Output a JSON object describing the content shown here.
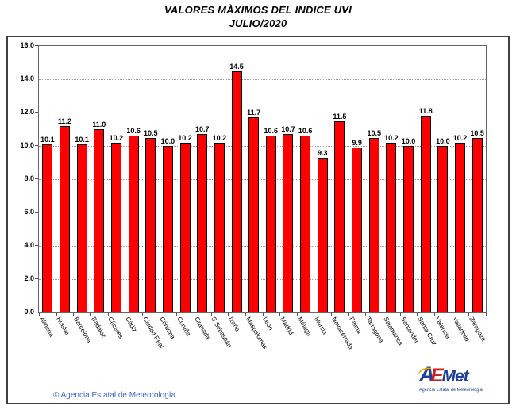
{
  "title": {
    "line1": "VALORES MÀXIMOS DEL INDICE UVI",
    "line2": "JULIO/2020"
  },
  "footer": {
    "copyright": "© Agencia Estatal de Meteorología"
  },
  "logo": {
    "letter_a": "A",
    "letter_e": "E",
    "letters_met": "Met",
    "subtitle": "Agencia Estatal de Meteorología"
  },
  "colors": {
    "bar_fill": "#FF0000",
    "bar_border": "#000000",
    "gridline": "#9A9A9A",
    "frame_border": "#404040",
    "footer_text": "#3A66CC",
    "logo_blue": "#1F4096",
    "logo_red": "#CC2020",
    "logo_yellow": "#E9A800"
  },
  "chart_data": {
    "type": "bar",
    "title": "VALORES MÀXIMOS DEL INDICE UVI JULIO/2020",
    "categories": [
      "Almería",
      "Huelva",
      "Barcelona",
      "Badajoz",
      "Cáceres",
      "Cádiz",
      "Ciudad Real",
      "Córdoba",
      "Coruña",
      "Granada",
      "S.Sebastián",
      "Izaña",
      "Maspalomas",
      "León",
      "Madrid",
      "Málaga",
      "Murcia",
      "Navacerrada",
      "Palma",
      "Tarragona",
      "Salamanca",
      "Santander",
      "Santa Cruz",
      "Valencia",
      "Valladolid",
      "Zaragoza"
    ],
    "values": [
      10.1,
      11.2,
      10.1,
      11.0,
      10.2,
      10.6,
      10.5,
      10.0,
      10.2,
      10.7,
      10.2,
      14.5,
      11.7,
      10.6,
      10.7,
      10.6,
      9.3,
      11.5,
      9.9,
      10.5,
      10.2,
      10.0,
      11.8,
      10.0,
      10.2,
      10.5
    ],
    "xlabel": "",
    "ylabel": "",
    "ylim": [
      0,
      16
    ],
    "ytick_step": 2,
    "ytick_labels": [
      "0.0",
      "2.0",
      "4.0",
      "6.0",
      "8.0",
      "10.0",
      "12.0",
      "14.0",
      "16.0"
    ],
    "grid": true,
    "legend": false,
    "value_label_decimals": 1
  }
}
